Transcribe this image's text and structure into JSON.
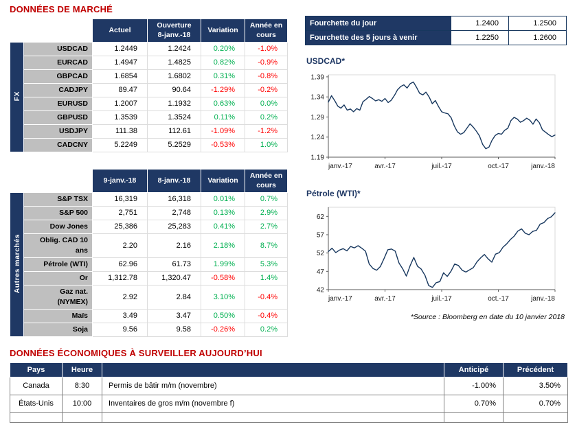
{
  "page": {
    "market_title": "DONNÉES DE MARCHÉ",
    "econ_title": "DONNÉES ÉCONOMIQUES À SURVEILLER AUJOURD’HUI",
    "source_note": "*Source : Bloomberg en date du  10 janvier 2018"
  },
  "range_table": {
    "rows": [
      {
        "label": "Fourchette du jour",
        "low": "1.2400",
        "high": "1.2500"
      },
      {
        "label": "Fourchette des 5 jours à venir",
        "low": "1.2250",
        "high": "1.2600"
      }
    ]
  },
  "fx_table": {
    "group": "FX",
    "headers": [
      "Actuel",
      "Ouverture\n8-janv.-18",
      "Variation",
      "Année en\ncours"
    ],
    "rows": [
      [
        "USDCAD",
        "1.2449",
        "1.2424",
        "0.20%",
        "-1.0%"
      ],
      [
        "EURCAD",
        "1.4947",
        "1.4825",
        "0.82%",
        "-0.9%"
      ],
      [
        "GBPCAD",
        "1.6854",
        "1.6802",
        "0.31%",
        "-0.8%"
      ],
      [
        "CADJPY",
        "89.47",
        "90.64",
        "-1.29%",
        "-0.2%"
      ],
      [
        "EURUSD",
        "1.2007",
        "1.1932",
        "0.63%",
        "0.0%"
      ],
      [
        "GBPUSD",
        "1.3539",
        "1.3524",
        "0.11%",
        "0.2%"
      ],
      [
        "USDJPY",
        "111.38",
        "112.61",
        "-1.09%",
        "-1.2%"
      ],
      [
        "CADCNY",
        "5.2249",
        "5.2529",
        "-0.53%",
        "1.0%"
      ]
    ]
  },
  "markets_table": {
    "group": "Autres marchés",
    "headers": [
      "9-janv.-18",
      "8-janv.-18",
      "Variation",
      "Année en\ncours"
    ],
    "rows": [
      [
        "S&P TSX",
        "16,319",
        "16,318",
        "0.01%",
        "0.7%"
      ],
      [
        "S&P 500",
        "2,751",
        "2,748",
        "0.13%",
        "2.9%"
      ],
      [
        "Dow Jones",
        "25,386",
        "25,283",
        "0.41%",
        "2.7%"
      ],
      [
        "Oblig. CAD 10 ans",
        "2.20",
        "2.16",
        "2.18%",
        "8.7%"
      ],
      [
        "Pétrole (WTI)",
        "62.96",
        "61.73",
        "1.99%",
        "5.3%"
      ],
      [
        "Or",
        "1,312.78",
        "1,320.47",
        "-0.58%",
        "1.4%"
      ],
      [
        "Gaz nat. (NYMEX)",
        "2.92",
        "2.84",
        "3.10%",
        "-0.4%"
      ],
      [
        "Maïs",
        "3.49",
        "3.47",
        "0.50%",
        "-0.4%"
      ],
      [
        "Soja",
        "9.56",
        "9.58",
        "-0.26%",
        "0.2%"
      ]
    ]
  },
  "econ_table": {
    "headers": [
      "Pays",
      "Heure",
      "",
      "Anticipé",
      "Précédent"
    ],
    "rows": [
      [
        "Canada",
        "8:30",
        "Permis de bâtir m/m (novembre)",
        "-1.00%",
        "3.50%"
      ],
      [
        "États-Unis",
        "10:00",
        "Inventaires de gros m/m (novembre f)",
        "0.70%",
        "0.70%"
      ],
      [
        "",
        "",
        "",
        "",
        ""
      ]
    ]
  },
  "chart_data": [
    {
      "type": "line",
      "title": "USDCAD*",
      "ylim": [
        1.19,
        1.395
      ],
      "ytick_values": [
        1.19,
        1.24,
        1.29,
        1.34,
        1.39
      ],
      "ytick_labels": [
        "1.19",
        "1.24",
        "1.29",
        "1.34",
        "1.39"
      ],
      "xticks": [
        "janv.-17",
        "avr.-17",
        "juil.-17",
        "oct.-17",
        "janv.-18"
      ],
      "values": [
        1.327,
        1.343,
        1.331,
        1.317,
        1.312,
        1.32,
        1.307,
        1.31,
        1.303,
        1.311,
        1.307,
        1.328,
        1.334,
        1.341,
        1.336,
        1.33,
        1.333,
        1.329,
        1.336,
        1.326,
        1.332,
        1.344,
        1.358,
        1.366,
        1.37,
        1.362,
        1.373,
        1.377,
        1.364,
        1.349,
        1.345,
        1.352,
        1.34,
        1.323,
        1.331,
        1.316,
        1.303,
        1.3,
        1.298,
        1.288,
        1.268,
        1.253,
        1.247,
        1.251,
        1.262,
        1.273,
        1.265,
        1.255,
        1.243,
        1.222,
        1.211,
        1.215,
        1.232,
        1.244,
        1.249,
        1.247,
        1.257,
        1.262,
        1.281,
        1.289,
        1.285,
        1.277,
        1.281,
        1.287,
        1.282,
        1.272,
        1.285,
        1.276,
        1.258,
        1.252,
        1.246,
        1.241,
        1.245
      ]
    },
    {
      "type": "line",
      "title": "Pétrole (WTI)*",
      "ylim": [
        42,
        64.5
      ],
      "ytick_values": [
        42,
        47,
        52,
        57,
        62
      ],
      "ytick_labels": [
        "42",
        "47",
        "52",
        "57",
        "62"
      ],
      "xticks": [
        "janv.-17",
        "avr.-17",
        "juil.-17",
        "oct.-17",
        "janv.-18"
      ],
      "values": [
        52.4,
        53.3,
        52.1,
        52.8,
        53.2,
        52.6,
        53.8,
        53.4,
        54.0,
        53.3,
        52.5,
        49.0,
        47.8,
        47.3,
        48.3,
        50.5,
        52.9,
        53.1,
        52.5,
        49.3,
        47.7,
        45.7,
        48.5,
        50.8,
        48.4,
        47.6,
        45.9,
        43.1,
        42.6,
        43.9,
        44.2,
        46.6,
        45.6,
        47.0,
        49.0,
        48.6,
        47.3,
        46.8,
        47.4,
        48.0,
        49.6,
        50.7,
        51.6,
        50.4,
        49.5,
        51.7,
        52.1,
        53.6,
        54.5,
        55.7,
        56.6,
        58.0,
        58.6,
        57.4,
        57.0,
        57.9,
        58.2,
        59.9,
        60.3,
        61.4,
        61.9,
        63.0
      ]
    }
  ],
  "colors": {
    "navy": "#1F3864",
    "heading_red": "#C00000",
    "positive": "#00B050",
    "negative": "#FF0000",
    "row_label_gray": "#BFBFBF",
    "chart_line": "#17375E"
  }
}
